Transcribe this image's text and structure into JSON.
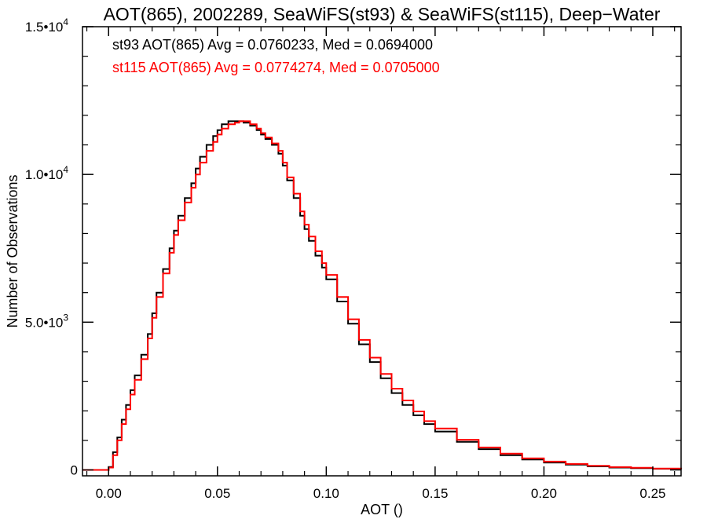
{
  "chart_data": {
    "type": "line",
    "title": "AOT(865), 2002289, SeaWiFS(st93) & SeaWiFS(st115), Deep−Water",
    "xlabel": "AOT ()",
    "ylabel": "Number of Observations",
    "xlim": [
      -0.012,
      0.263
    ],
    "ylim": [
      -200,
      15000
    ],
    "x_ticks": [
      "0.00",
      "0.05",
      "0.10",
      "0.15",
      "0.20",
      "0.25"
    ],
    "x_tick_values": [
      0.0,
      0.05,
      0.1,
      0.15,
      0.2,
      0.25
    ],
    "y_ticks": [
      {
        "mantissa": "0",
        "exp": "",
        "value": 0
      },
      {
        "mantissa": "5.0•10",
        "exp": "3",
        "value": 5000
      },
      {
        "mantissa": "1.0•10",
        "exp": "4",
        "value": 10000
      },
      {
        "mantissa": "1.5•10",
        "exp": "4",
        "value": 15000
      }
    ],
    "step": "histogram",
    "grid": false,
    "series": [
      {
        "name": "st93",
        "color": "#000000",
        "stats": "st93 AOT(865) Avg = 0.0760233, Med = 0.0694000",
        "x": [
          -0.012,
          -0.001,
          0.0,
          0.002,
          0.004,
          0.006,
          0.008,
          0.01,
          0.012,
          0.015,
          0.018,
          0.02,
          0.022,
          0.025,
          0.028,
          0.03,
          0.032,
          0.035,
          0.038,
          0.04,
          0.042,
          0.045,
          0.048,
          0.05,
          0.052,
          0.055,
          0.058,
          0.06,
          0.062,
          0.065,
          0.068,
          0.07,
          0.072,
          0.075,
          0.078,
          0.08,
          0.082,
          0.085,
          0.088,
          0.09,
          0.092,
          0.095,
          0.098,
          0.1,
          0.105,
          0.11,
          0.115,
          0.12,
          0.125,
          0.13,
          0.135,
          0.14,
          0.145,
          0.15,
          0.16,
          0.17,
          0.18,
          0.19,
          0.2,
          0.21,
          0.22,
          0.23,
          0.24,
          0.25,
          0.263
        ],
        "y": [
          0,
          0,
          100,
          600,
          1100,
          1700,
          2200,
          2700,
          3200,
          3900,
          4600,
          5300,
          6000,
          6800,
          7500,
          8100,
          8600,
          9200,
          9700,
          10200,
          10600,
          11000,
          11300,
          11500,
          11700,
          11800,
          11800,
          11800,
          11750,
          11650,
          11500,
          11350,
          11200,
          11000,
          10700,
          10300,
          9800,
          9200,
          8600,
          8150,
          7750,
          7250,
          6850,
          6450,
          5700,
          4950,
          4250,
          3650,
          3100,
          2600,
          2200,
          1850,
          1550,
          1300,
          950,
          700,
          500,
          350,
          250,
          180,
          120,
          80,
          60,
          40,
          20
        ]
      },
      {
        "name": "st115",
        "color": "#ff0000",
        "stats": "st115 AOT(865) Avg = 0.0774274, Med = 0.0705000",
        "x": [
          -0.012,
          -0.001,
          0.0,
          0.002,
          0.004,
          0.006,
          0.008,
          0.01,
          0.012,
          0.015,
          0.018,
          0.02,
          0.022,
          0.025,
          0.028,
          0.03,
          0.032,
          0.035,
          0.038,
          0.04,
          0.042,
          0.045,
          0.048,
          0.05,
          0.052,
          0.055,
          0.058,
          0.06,
          0.062,
          0.065,
          0.068,
          0.07,
          0.072,
          0.075,
          0.078,
          0.08,
          0.082,
          0.085,
          0.088,
          0.09,
          0.092,
          0.095,
          0.098,
          0.1,
          0.105,
          0.11,
          0.115,
          0.12,
          0.125,
          0.13,
          0.135,
          0.14,
          0.145,
          0.15,
          0.16,
          0.17,
          0.18,
          0.19,
          0.2,
          0.21,
          0.22,
          0.23,
          0.24,
          0.25,
          0.263
        ],
        "y": [
          0,
          0,
          80,
          500,
          1000,
          1550,
          2050,
          2550,
          3050,
          3750,
          4450,
          5150,
          5850,
          6650,
          7350,
          7950,
          8450,
          9050,
          9550,
          10000,
          10400,
          10800,
          11100,
          11350,
          11550,
          11700,
          11750,
          11800,
          11800,
          11700,
          11550,
          11400,
          11250,
          11050,
          10800,
          10400,
          9900,
          9350,
          8750,
          8300,
          7900,
          7400,
          7000,
          6600,
          5850,
          5100,
          4400,
          3800,
          3250,
          2750,
          2350,
          1980,
          1650,
          1400,
          1020,
          760,
          550,
          390,
          280,
          200,
          140,
          95,
          70,
          45,
          25
        ]
      }
    ]
  }
}
